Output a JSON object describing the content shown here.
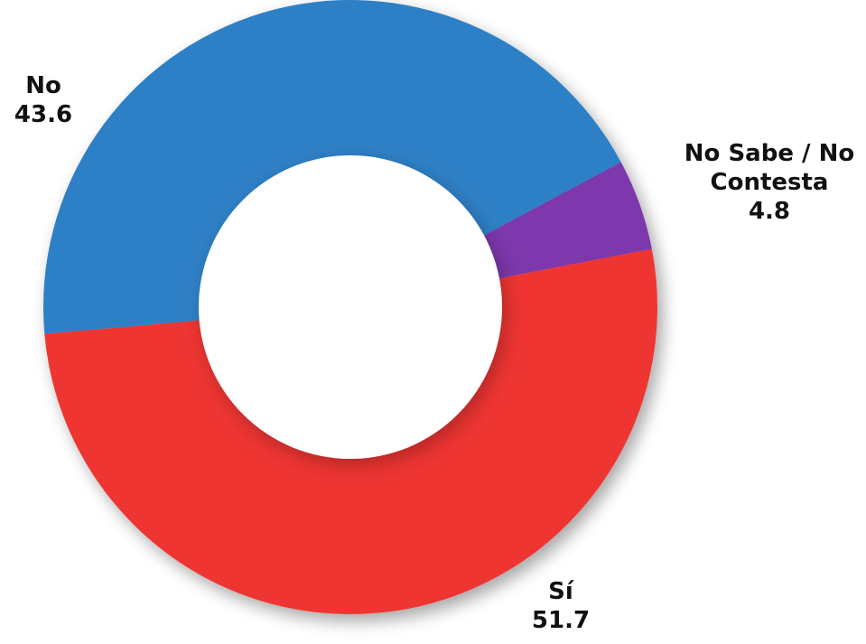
{
  "chart_data": {
    "type": "pie",
    "variant": "donut",
    "title": "",
    "categories": [
      "Sí",
      "No Sabe / No Contesta",
      "No"
    ],
    "values": [
      51.7,
      4.8,
      43.6
    ],
    "colors": [
      "#ee3530",
      "#7b38ac",
      "#2d80c6"
    ],
    "labels": [
      {
        "lines": [
          "Sí"
        ],
        "value": "51.7"
      },
      {
        "lines": [
          "No Sabe / No",
          "Contesta"
        ],
        "value": "4.8"
      },
      {
        "lines": [
          "No"
        ],
        "value": "43.6"
      }
    ],
    "legend": "none"
  }
}
